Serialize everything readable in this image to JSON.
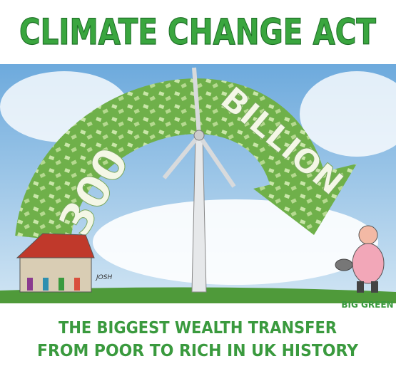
{
  "header": {
    "title": "CLIMATE CHANGE ACT"
  },
  "arrow": {
    "amount": "300",
    "unit": "BILLION"
  },
  "signature": "JOSH",
  "character": {
    "label": "BIG GREEN"
  },
  "caption": {
    "lines": [
      "THE BIGGEST WEALTH TRANSFER",
      "FROM POOR TO RICH IN UK HISTORY"
    ]
  }
}
